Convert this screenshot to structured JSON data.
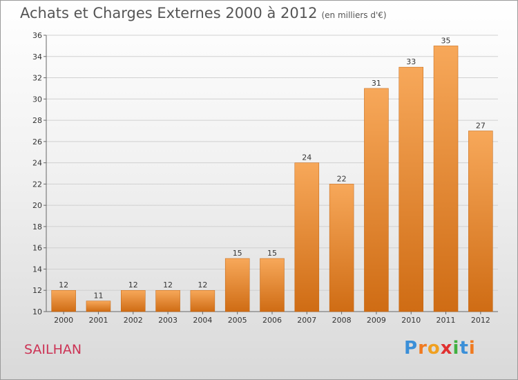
{
  "title": "Achats et Charges Externes 2000 à 2012",
  "unit": "(en milliers d'€)",
  "commune": "SAILHAN",
  "logo": {
    "letters": [
      "P",
      "r",
      "o",
      "x",
      "i",
      "t",
      "i"
    ],
    "colors": [
      "#3a8fd8",
      "#f07a20",
      "#f0a020",
      "#e03030",
      "#40b040",
      "#3a8fd8",
      "#f07a20"
    ]
  },
  "colors": {
    "bar_top": "#f7a85a",
    "bar_bottom": "#cf6c14",
    "bar_stroke": "#c0620f",
    "grid": "#d0d0d0"
  },
  "chart_data": {
    "type": "bar",
    "categories": [
      "2000",
      "2001",
      "2002",
      "2003",
      "2004",
      "2005",
      "2006",
      "2007",
      "2008",
      "2009",
      "2010",
      "2011",
      "2012"
    ],
    "values": [
      12,
      11,
      12,
      12,
      12,
      15,
      15,
      24,
      22,
      31,
      33,
      35,
      27
    ],
    "ylim": [
      10,
      36
    ],
    "yticks": [
      10,
      12,
      14,
      16,
      18,
      20,
      22,
      24,
      26,
      28,
      30,
      32,
      34,
      36
    ],
    "grid": true,
    "title": "Achats et Charges Externes 2000 à 2012",
    "xlabel": "",
    "ylabel": ""
  }
}
